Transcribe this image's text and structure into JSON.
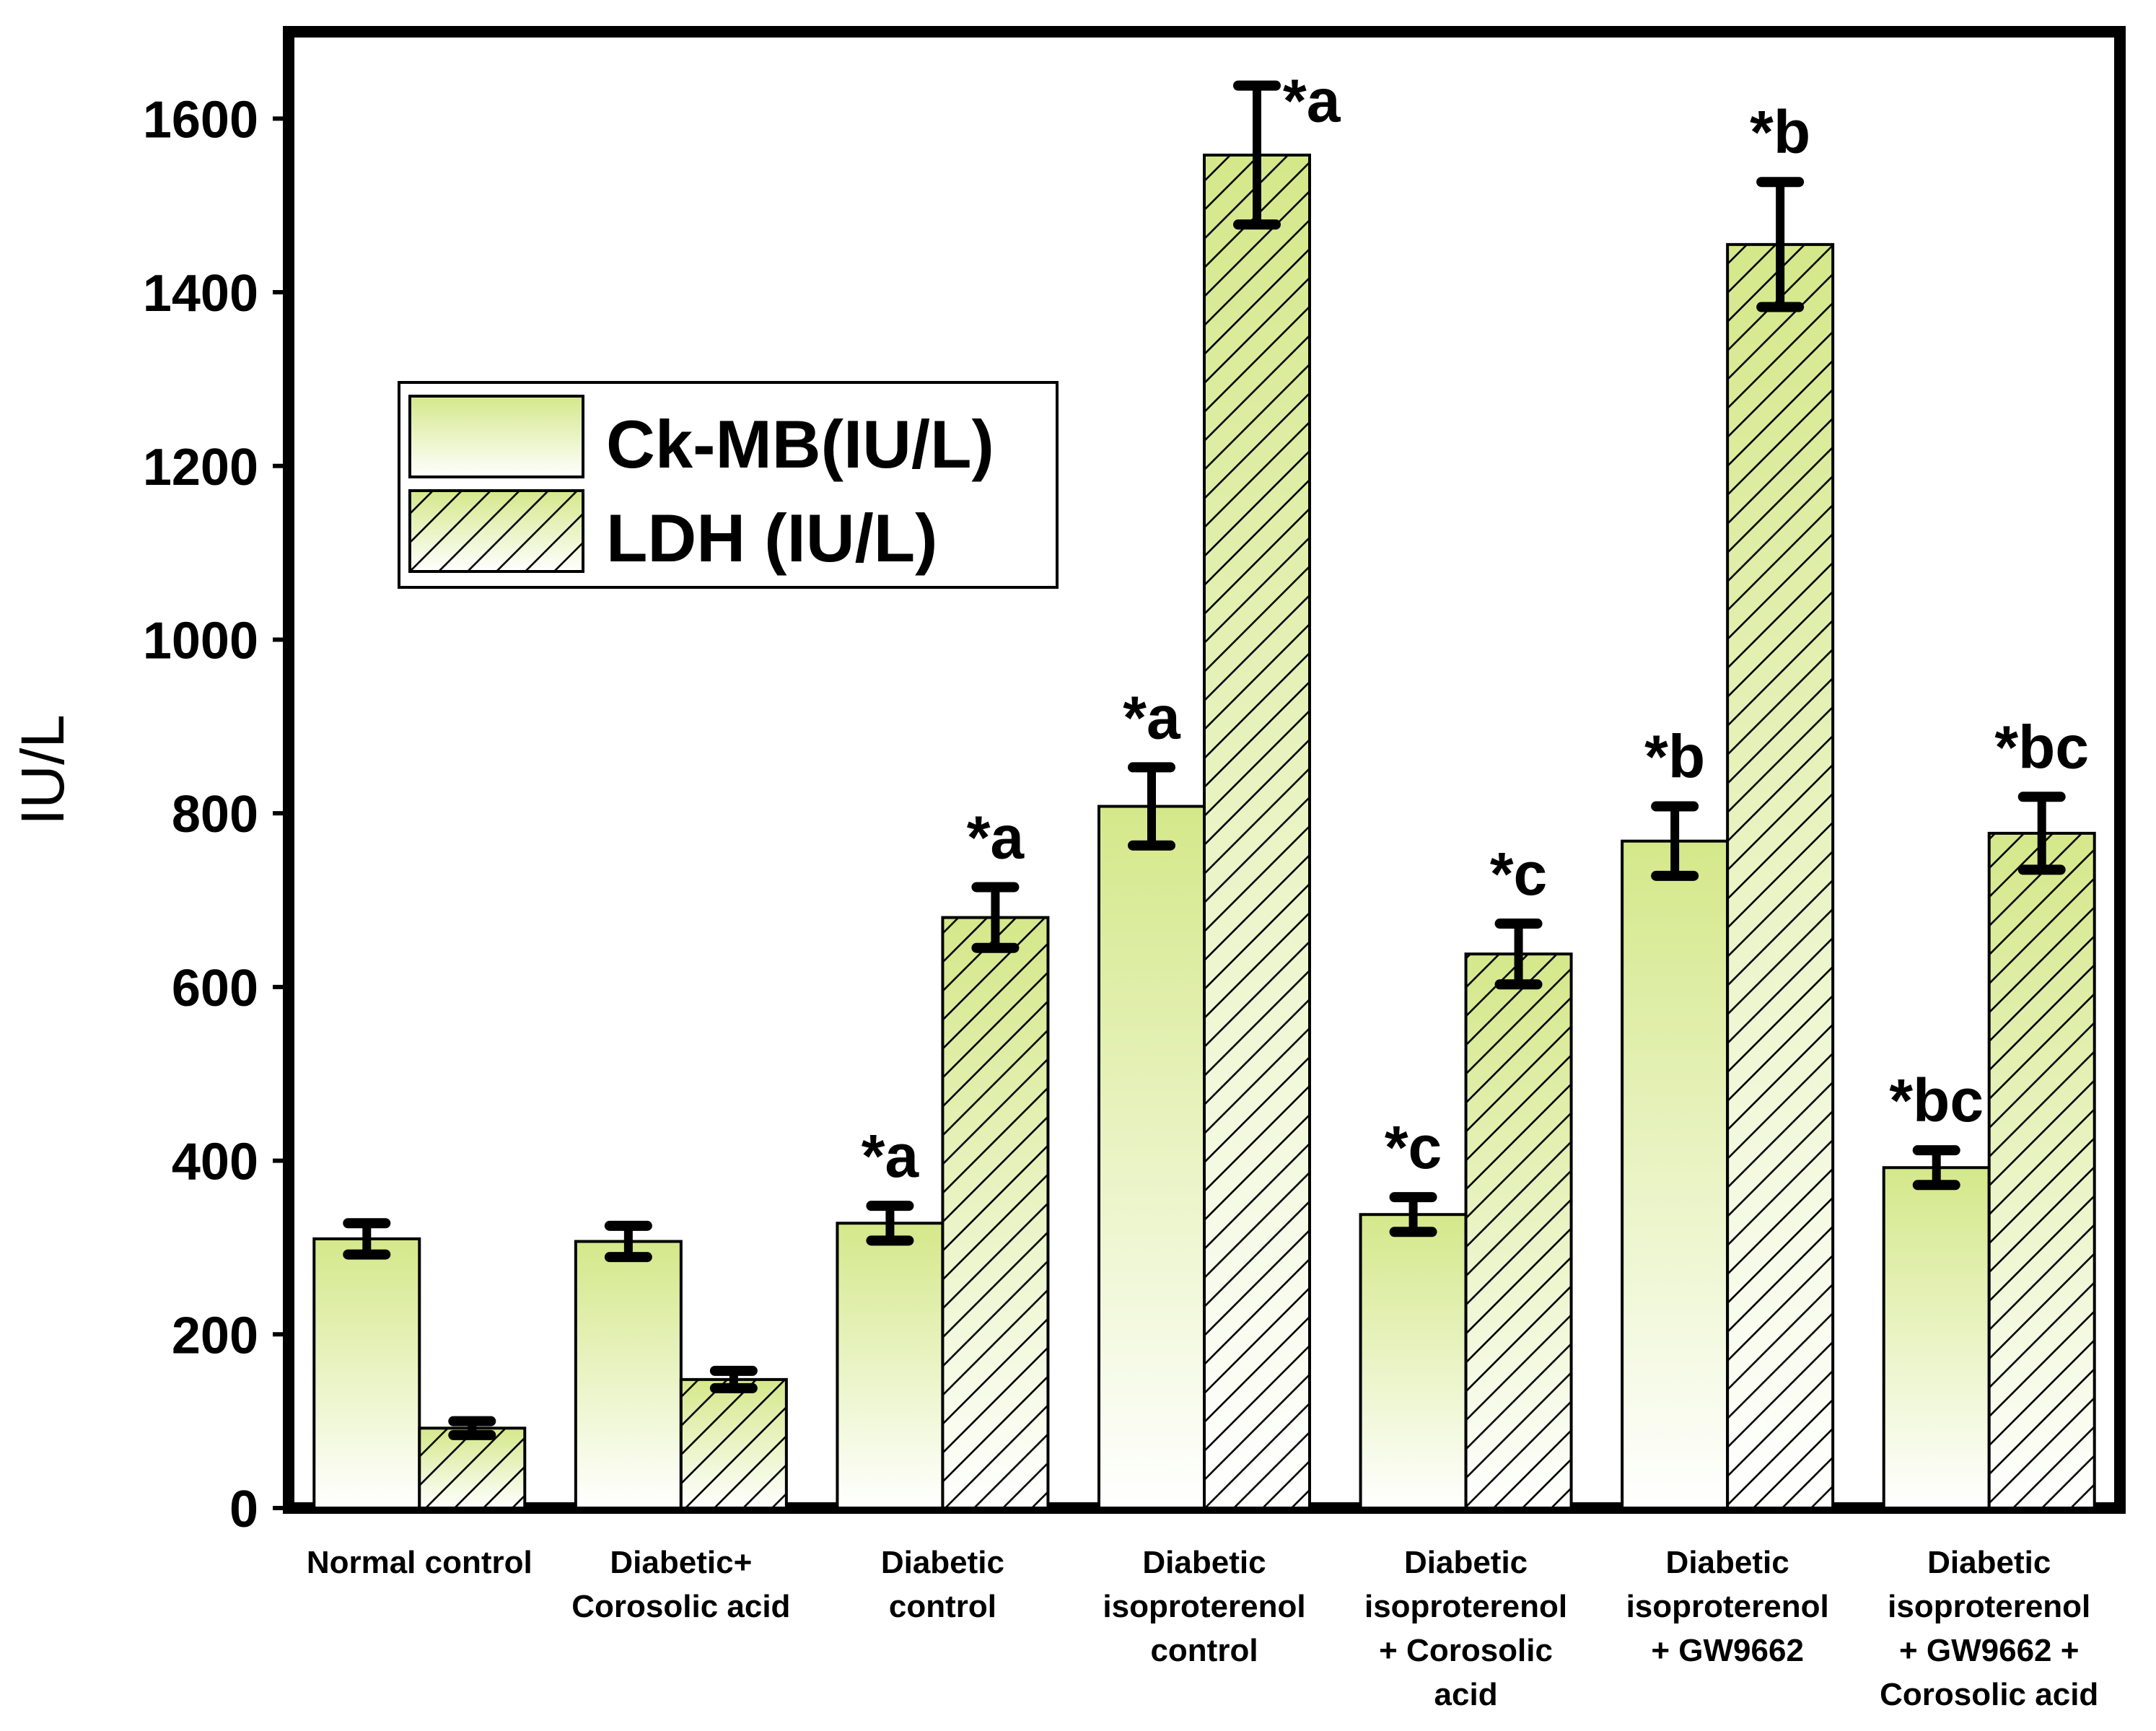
{
  "chart_data": {
    "type": "bar",
    "title": "",
    "xlabel": "",
    "ylabel": "IU/L",
    "ylim": [
      0,
      1700
    ],
    "yticks": [
      0,
      200,
      400,
      600,
      800,
      1000,
      1200,
      1400,
      1600
    ],
    "categories": [
      [
        "Normal control"
      ],
      [
        "Diabetic+",
        "Corosolic acid"
      ],
      [
        "Diabetic",
        "control"
      ],
      [
        "Diabetic",
        "isoproterenol",
        "control"
      ],
      [
        "Diabetic",
        "isoproterenol",
        "+ Corosolic",
        "acid"
      ],
      [
        "Diabetic",
        "isoproterenol",
        "+ GW9662"
      ],
      [
        "Diabetic",
        "isoproterenol",
        "+ GW9662 +",
        "Corosolic acid"
      ]
    ],
    "series": [
      {
        "name": "Ck-MB(IU/L)",
        "pattern": "gradient",
        "values": [
          310,
          307,
          328,
          808,
          338,
          768,
          392
        ],
        "errors": [
          18,
          18,
          20,
          45,
          20,
          40,
          20
        ],
        "labels": [
          "",
          "",
          "*a",
          "*a",
          "*c",
          "*b",
          "*bc"
        ]
      },
      {
        "name": "LDH (IU/L)",
        "pattern": "hatched-gradient",
        "values": [
          92,
          148,
          680,
          1558,
          638,
          1455,
          777
        ],
        "errors": [
          8,
          10,
          35,
          80,
          35,
          72,
          42
        ],
        "labels": [
          "",
          "",
          "*a",
          "*a",
          "*c",
          "*b",
          "*bc"
        ]
      }
    ],
    "legend_position": "upper-left",
    "colors": {
      "bar_top": "#d4e88a",
      "bar_bottom": "#ffffff",
      "outline": "#000000",
      "error_bar": "#000000"
    }
  }
}
